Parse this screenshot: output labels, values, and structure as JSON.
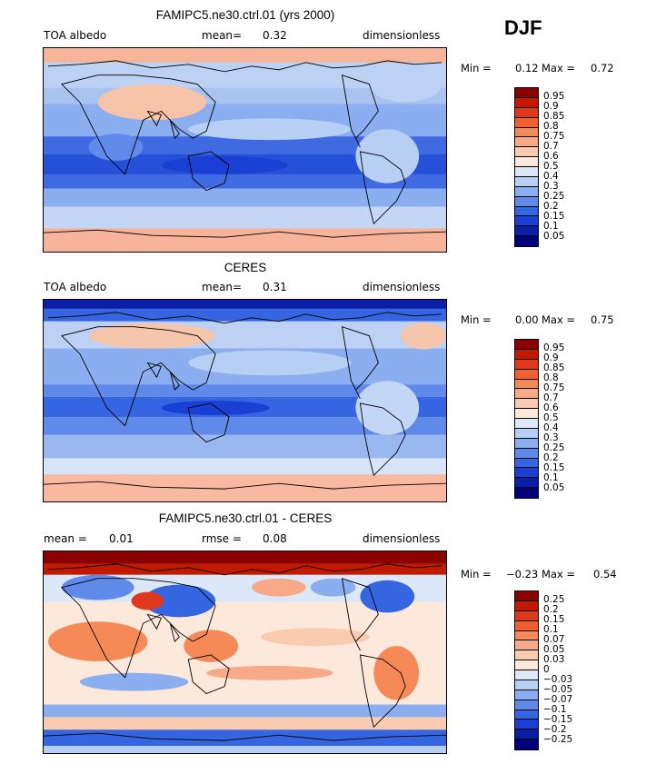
{
  "season": "DJF",
  "panels": [
    {
      "title": "FAMIPC5.ne30.ctrl.01 (yrs 2000)",
      "left": "TOA albedo",
      "mid_label": "mean=",
      "mid_value": "0.32",
      "right": "dimensionless",
      "min_label": "Min =",
      "min_value": "0.12",
      "max_label": "Max =",
      "max_value": "0.72",
      "levels": [
        "0.95",
        "0.9",
        "0.85",
        "0.8",
        "0.75",
        "0.7",
        "0.6",
        "0.5",
        "0.4",
        "0.3",
        "0.25",
        "0.2",
        "0.15",
        "0.1",
        "0.05"
      ],
      "colors": [
        "#8b0000",
        "#c21a00",
        "#e0381a",
        "#f06030",
        "#f58a58",
        "#f8aa88",
        "#fbcbb0",
        "#fde8dc",
        "#dce8f8",
        "#b8cff4",
        "#8aaeef",
        "#5f8aea",
        "#3565e0",
        "#1a3fd4",
        "#0a1fa8",
        "#00007a"
      ]
    },
    {
      "title": "CERES",
      "left": "TOA albedo",
      "mid_label": "mean=",
      "mid_value": "0.31",
      "right": "dimensionless",
      "min_label": "Min =",
      "min_value": "0.00",
      "max_label": "Max =",
      "max_value": "0.75",
      "levels": [
        "0.95",
        "0.9",
        "0.85",
        "0.8",
        "0.75",
        "0.7",
        "0.6",
        "0.5",
        "0.4",
        "0.3",
        "0.25",
        "0.2",
        "0.15",
        "0.1",
        "0.05"
      ],
      "colors": [
        "#8b0000",
        "#c21a00",
        "#e0381a",
        "#f06030",
        "#f58a58",
        "#f8aa88",
        "#fbcbb0",
        "#fde8dc",
        "#dce8f8",
        "#b8cff4",
        "#8aaeef",
        "#5f8aea",
        "#3565e0",
        "#1a3fd4",
        "#0a1fa8",
        "#00007a"
      ]
    },
    {
      "title": "FAMIPC5.ne30.ctrl.01 - CERES",
      "left_label": "mean =",
      "left_value": "0.01",
      "mid_label": "rmse =",
      "mid_value": "0.08",
      "right": "dimensionless",
      "min_label": "Min =",
      "min_value": "−0.23",
      "max_label": "Max =",
      "max_value": "0.54",
      "levels": [
        "0.25",
        "0.2",
        "0.15",
        "0.1",
        "0.07",
        "0.05",
        "0.03",
        "0",
        "−0.03",
        "−0.05",
        "−0.07",
        "−0.1",
        "−0.15",
        "−0.2",
        "−0.25"
      ],
      "colors": [
        "#8b0000",
        "#c21a00",
        "#e0381a",
        "#f06030",
        "#f58a58",
        "#f8aa88",
        "#fbcbb0",
        "#fde8dc",
        "#dce8f8",
        "#b8cff4",
        "#8aaeef",
        "#5f8aea",
        "#3565e0",
        "#1a3fd4",
        "#0a1fa8",
        "#00007a"
      ]
    }
  ]
}
